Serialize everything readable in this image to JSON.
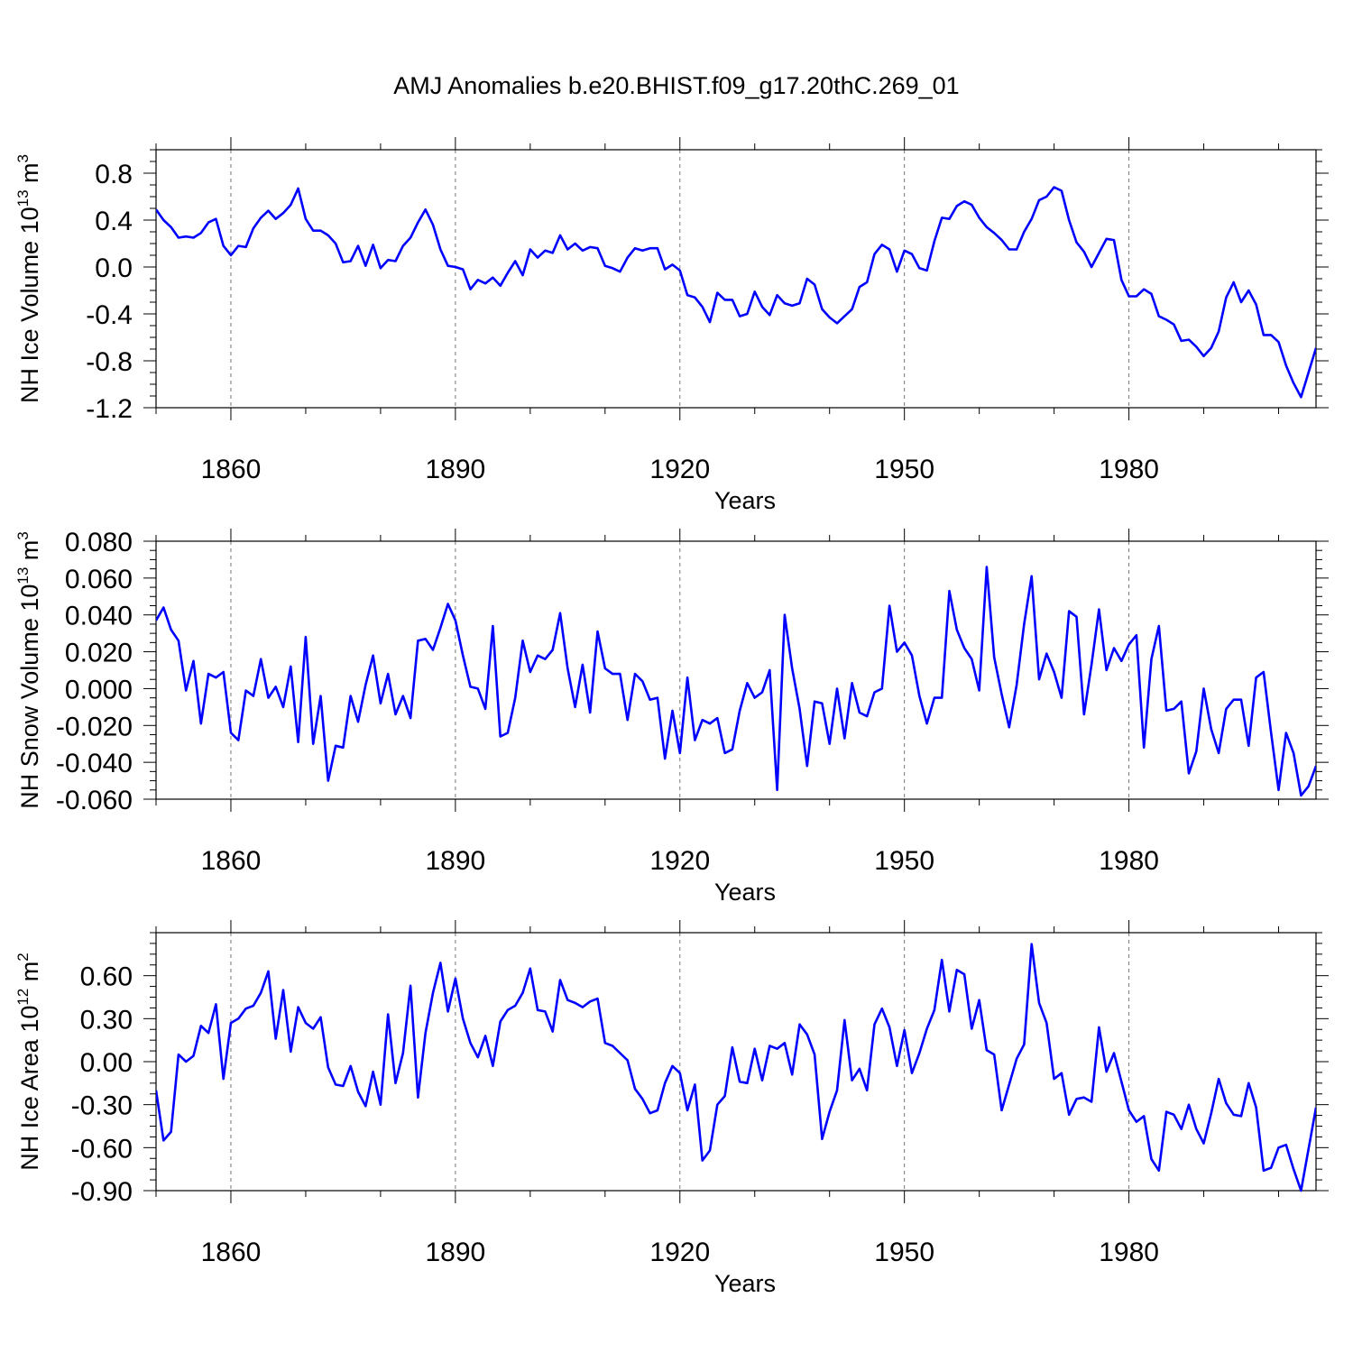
{
  "title": "AMJ Anomalies b.e20.BHIST.f09_g17.20thC.269_01",
  "colors": {
    "series": "#0000ff",
    "axis": "#000000",
    "grid": "#777777"
  },
  "chart_data": [
    {
      "type": "line",
      "ylabel_main": "NH Ice Volume 10",
      "ylabel_exp": "13",
      "ylabel_unit": " m",
      "ylabel_pow": "3",
      "xlabel": "Years",
      "xlim": [
        1850,
        2005
      ],
      "ylim": [
        -1.2,
        1.0
      ],
      "xticks": [
        1860,
        1890,
        1920,
        1950,
        1980
      ],
      "xtick_labels": [
        "1860",
        "1890",
        "1920",
        "1950",
        "1980"
      ],
      "yticks": [
        -1.2,
        -0.8,
        -0.4,
        0.0,
        0.4,
        0.8
      ],
      "ytick_labels": [
        "-1.2",
        "-0.8",
        "-0.4",
        "0.0",
        "0.4",
        "0.8"
      ],
      "grid": "vertical dashed at major x ticks",
      "x_start": 1850,
      "values": [
        0.49,
        0.4,
        0.34,
        0.25,
        0.26,
        0.25,
        0.29,
        0.38,
        0.41,
        0.18,
        0.1,
        0.18,
        0.17,
        0.33,
        0.42,
        0.48,
        0.41,
        0.46,
        0.53,
        0.67,
        0.41,
        0.31,
        0.31,
        0.27,
        0.2,
        0.04,
        0.05,
        0.18,
        0.01,
        0.19,
        -0.01,
        0.06,
        0.05,
        0.18,
        0.25,
        0.38,
        0.49,
        0.36,
        0.15,
        0.01,
        0.0,
        -0.02,
        -0.19,
        -0.11,
        -0.14,
        -0.09,
        -0.16,
        -0.05,
        0.05,
        -0.07,
        0.15,
        0.08,
        0.14,
        0.12,
        0.27,
        0.15,
        0.2,
        0.14,
        0.17,
        0.16,
        0.01,
        -0.01,
        -0.04,
        0.08,
        0.16,
        0.14,
        0.16,
        0.16,
        -0.02,
        0.02,
        -0.03,
        -0.24,
        -0.26,
        -0.34,
        -0.47,
        -0.22,
        -0.28,
        -0.28,
        -0.42,
        -0.4,
        -0.21,
        -0.34,
        -0.41,
        -0.24,
        -0.31,
        -0.33,
        -0.31,
        -0.1,
        -0.15,
        -0.36,
        -0.43,
        -0.48,
        -0.42,
        -0.36,
        -0.17,
        -0.13,
        0.11,
        0.19,
        0.15,
        -0.04,
        0.14,
        0.11,
        -0.01,
        -0.03,
        0.22,
        0.42,
        0.41,
        0.52,
        0.56,
        0.53,
        0.42,
        0.34,
        0.29,
        0.23,
        0.15,
        0.15,
        0.3,
        0.41,
        0.57,
        0.6,
        0.68,
        0.65,
        0.4,
        0.21,
        0.13,
        0.0,
        0.12,
        0.24,
        0.23,
        -0.11,
        -0.25,
        -0.25,
        -0.19,
        -0.23,
        -0.42,
        -0.45,
        -0.49,
        -0.63,
        -0.62,
        -0.68,
        -0.76,
        -0.69,
        -0.55,
        -0.26,
        -0.13,
        -0.3,
        -0.2,
        -0.32,
        -0.58,
        -0.58,
        -0.64,
        -0.84,
        -0.99,
        -1.11,
        -0.9,
        -0.69
      ]
    },
    {
      "type": "line",
      "ylabel_main": "NH Snow Volume 10",
      "ylabel_exp": "13",
      "ylabel_unit": " m",
      "ylabel_pow": "3",
      "xlabel": "Years",
      "xlim": [
        1850,
        2005
      ],
      "ylim": [
        -0.06,
        0.08
      ],
      "xticks": [
        1860,
        1890,
        1920,
        1950,
        1980
      ],
      "xtick_labels": [
        "1860",
        "1890",
        "1920",
        "1950",
        "1980"
      ],
      "yticks": [
        -0.06,
        -0.04,
        -0.02,
        0.0,
        0.02,
        0.04,
        0.06,
        0.08
      ],
      "ytick_labels": [
        "-0.060",
        "-0.040",
        "-0.020",
        "0.000",
        "0.020",
        "0.040",
        "0.060",
        "0.080"
      ],
      "grid": "vertical dashed at major x ticks",
      "x_start": 1850,
      "values": [
        0.037,
        0.044,
        0.032,
        0.026,
        -0.001,
        0.015,
        -0.019,
        0.008,
        0.006,
        0.009,
        -0.024,
        -0.028,
        -0.001,
        -0.004,
        0.016,
        -0.005,
        0.001,
        -0.01,
        0.012,
        -0.029,
        0.028,
        -0.03,
        -0.004,
        -0.05,
        -0.031,
        -0.032,
        -0.004,
        -0.018,
        0.002,
        0.018,
        -0.008,
        0.008,
        -0.014,
        -0.004,
        -0.016,
        0.026,
        0.027,
        0.021,
        0.033,
        0.046,
        0.037,
        0.018,
        0.001,
        0.0,
        -0.011,
        0.034,
        -0.026,
        -0.024,
        -0.005,
        0.026,
        0.009,
        0.018,
        0.016,
        0.021,
        0.041,
        0.011,
        -0.01,
        0.013,
        -0.013,
        0.031,
        0.011,
        0.008,
        0.008,
        -0.017,
        0.008,
        0.004,
        -0.006,
        -0.005,
        -0.038,
        -0.012,
        -0.035,
        0.006,
        -0.028,
        -0.017,
        -0.019,
        -0.016,
        -0.035,
        -0.033,
        -0.012,
        0.003,
        -0.005,
        -0.002,
        0.01,
        -0.055,
        0.04,
        0.011,
        -0.011,
        -0.042,
        -0.007,
        -0.008,
        -0.03,
        0.0,
        -0.027,
        0.003,
        -0.013,
        -0.015,
        -0.002,
        0.0,
        0.045,
        0.02,
        0.025,
        0.018,
        -0.004,
        -0.019,
        -0.005,
        -0.005,
        0.053,
        0.032,
        0.022,
        0.016,
        -0.001,
        0.066,
        0.017,
        -0.003,
        -0.021,
        0.002,
        0.035,
        0.061,
        0.005,
        0.019,
        0.009,
        -0.005,
        0.042,
        0.039,
        -0.014,
        0.013,
        0.043,
        0.01,
        0.022,
        0.015,
        0.024,
        0.029,
        -0.032,
        0.016,
        0.034,
        -0.012,
        -0.011,
        -0.007,
        -0.046,
        -0.034,
        0.0,
        -0.022,
        -0.035,
        -0.011,
        -0.006,
        -0.006,
        -0.031,
        0.006,
        0.009,
        -0.024,
        -0.055,
        -0.024,
        -0.035,
        -0.058,
        -0.053,
        -0.042
      ]
    },
    {
      "type": "line",
      "ylabel_main": "NH Ice Area 10",
      "ylabel_exp": "12",
      "ylabel_unit": " m",
      "ylabel_pow": "2",
      "xlabel": "Years",
      "xlim": [
        1850,
        2005
      ],
      "ylim": [
        -0.9,
        0.9
      ],
      "xticks": [
        1860,
        1890,
        1920,
        1950,
        1980
      ],
      "xtick_labels": [
        "1860",
        "1890",
        "1920",
        "1950",
        "1980"
      ],
      "yticks": [
        -0.9,
        -0.6,
        -0.3,
        0.0,
        0.3,
        0.6
      ],
      "ytick_labels": [
        "-0.90",
        "-0.60",
        "-0.30",
        "0.00",
        "0.30",
        "0.60"
      ],
      "grid": "vertical dashed at major x ticks",
      "x_start": 1850,
      "values": [
        -0.2,
        -0.55,
        -0.49,
        0.05,
        0.0,
        0.04,
        0.25,
        0.2,
        0.4,
        -0.12,
        0.27,
        0.3,
        0.37,
        0.39,
        0.48,
        0.63,
        0.16,
        0.5,
        0.07,
        0.38,
        0.27,
        0.23,
        0.31,
        -0.04,
        -0.16,
        -0.17,
        -0.03,
        -0.21,
        -0.31,
        -0.07,
        -0.3,
        0.33,
        -0.15,
        0.06,
        0.53,
        -0.25,
        0.2,
        0.48,
        0.69,
        0.35,
        0.58,
        0.3,
        0.13,
        0.03,
        0.18,
        -0.03,
        0.28,
        0.36,
        0.39,
        0.48,
        0.65,
        0.36,
        0.35,
        0.21,
        0.57,
        0.43,
        0.41,
        0.38,
        0.42,
        0.44,
        0.13,
        0.11,
        0.06,
        0.01,
        -0.19,
        -0.26,
        -0.36,
        -0.34,
        -0.15,
        -0.03,
        -0.08,
        -0.34,
        -0.16,
        -0.69,
        -0.62,
        -0.3,
        -0.24,
        0.1,
        -0.14,
        -0.15,
        0.09,
        -0.13,
        0.11,
        0.09,
        0.13,
        -0.09,
        0.26,
        0.19,
        0.05,
        -0.54,
        -0.35,
        -0.2,
        0.29,
        -0.13,
        -0.05,
        -0.2,
        0.26,
        0.37,
        0.24,
        -0.03,
        0.22,
        -0.08,
        0.06,
        0.23,
        0.36,
        0.71,
        0.35,
        0.64,
        0.61,
        0.23,
        0.43,
        0.08,
        0.05,
        -0.34,
        -0.16,
        0.02,
        0.12,
        0.82,
        0.41,
        0.27,
        -0.12,
        -0.08,
        -0.37,
        -0.26,
        -0.25,
        -0.28,
        0.24,
        -0.07,
        0.06,
        -0.14,
        -0.34,
        -0.42,
        -0.38,
        -0.68,
        -0.76,
        -0.35,
        -0.37,
        -0.47,
        -0.3,
        -0.47,
        -0.57,
        -0.36,
        -0.12,
        -0.29,
        -0.37,
        -0.38,
        -0.15,
        -0.32,
        -0.76,
        -0.74,
        -0.6,
        -0.58,
        -0.75,
        -0.9,
        -0.61,
        -0.32
      ]
    }
  ]
}
